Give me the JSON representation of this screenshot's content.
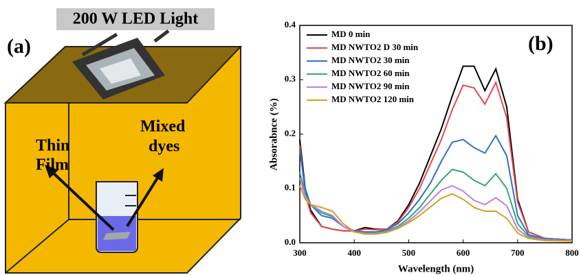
{
  "figure_a": {
    "label": "(a)",
    "lamp": "200 W LED Light",
    "thin_film": [
      "Thin",
      "Film"
    ],
    "mixed_dyes": [
      "Mixed",
      "dyes"
    ]
  },
  "chart_data": {
    "type": "line",
    "panel_label": "(b)",
    "x_label": "Wavelength (nm)",
    "y_label": "Absorabnce (%)",
    "xlim": [
      300,
      800
    ],
    "xticks": [
      300,
      400,
      500,
      600,
      700,
      800
    ],
    "ylim": [
      0,
      0.4
    ],
    "yticks": [
      {
        "value": 0,
        "label": "0.0"
      },
      0.1,
      0.2,
      0.3,
      0.4
    ],
    "legend": "upper left",
    "x": [
      300,
      310,
      320,
      340,
      360,
      380,
      400,
      420,
      440,
      460,
      480,
      500,
      520,
      540,
      560,
      580,
      600,
      620,
      640,
      660,
      680,
      700,
      720,
      750,
      800
    ],
    "series": [
      {
        "name": "MD 0 min",
        "color": "#000000",
        "values": [
          0.19,
          0.1,
          0.06,
          0.03,
          0.025,
          0.022,
          0.022,
          0.028,
          0.025,
          0.025,
          0.04,
          0.07,
          0.11,
          0.16,
          0.21,
          0.27,
          0.325,
          0.325,
          0.28,
          0.32,
          0.25,
          0.08,
          0.02,
          0.008,
          0.005
        ]
      },
      {
        "name": "MD NWTO2 D 30 min",
        "color": "#e8474f",
        "values": [
          0.18,
          0.09,
          0.055,
          0.03,
          0.025,
          0.022,
          0.022,
          0.025,
          0.024,
          0.025,
          0.038,
          0.065,
          0.1,
          0.145,
          0.19,
          0.245,
          0.29,
          0.285,
          0.255,
          0.295,
          0.23,
          0.075,
          0.02,
          0.008,
          0.005
        ]
      },
      {
        "name": "MD NWTO2 30 min",
        "color": "#2f6fd0",
        "values": [
          0.17,
          0.1,
          0.07,
          0.05,
          0.045,
          0.03,
          0.022,
          0.02,
          0.02,
          0.024,
          0.035,
          0.055,
          0.08,
          0.11,
          0.15,
          0.185,
          0.19,
          0.175,
          0.165,
          0.197,
          0.16,
          0.05,
          0.015,
          0.007,
          0.005
        ]
      },
      {
        "name": "MD NWTO2 60 min",
        "color": "#2eab6e",
        "values": [
          0.13,
          0.09,
          0.07,
          0.055,
          0.048,
          0.03,
          0.02,
          0.018,
          0.018,
          0.022,
          0.03,
          0.045,
          0.065,
          0.09,
          0.115,
          0.135,
          0.13,
          0.115,
          0.105,
          0.127,
          0.1,
          0.035,
          0.012,
          0.006,
          0.004
        ]
      },
      {
        "name": "MD NWTO2 90 min",
        "color": "#c07ee0",
        "values": [
          0.12,
          0.085,
          0.07,
          0.058,
          0.05,
          0.03,
          0.02,
          0.017,
          0.017,
          0.02,
          0.028,
          0.04,
          0.057,
          0.077,
          0.097,
          0.105,
          0.095,
          0.078,
          0.07,
          0.083,
          0.068,
          0.025,
          0.01,
          0.005,
          0.004
        ]
      },
      {
        "name": "MD NWTO2 120 min",
        "color": "#d4a020",
        "values": [
          0.105,
          0.08,
          0.07,
          0.065,
          0.058,
          0.035,
          0.02,
          0.016,
          0.016,
          0.019,
          0.026,
          0.037,
          0.05,
          0.066,
          0.082,
          0.09,
          0.08,
          0.065,
          0.058,
          0.058,
          0.045,
          0.018,
          0.008,
          0.004,
          0.003
        ]
      }
    ]
  }
}
